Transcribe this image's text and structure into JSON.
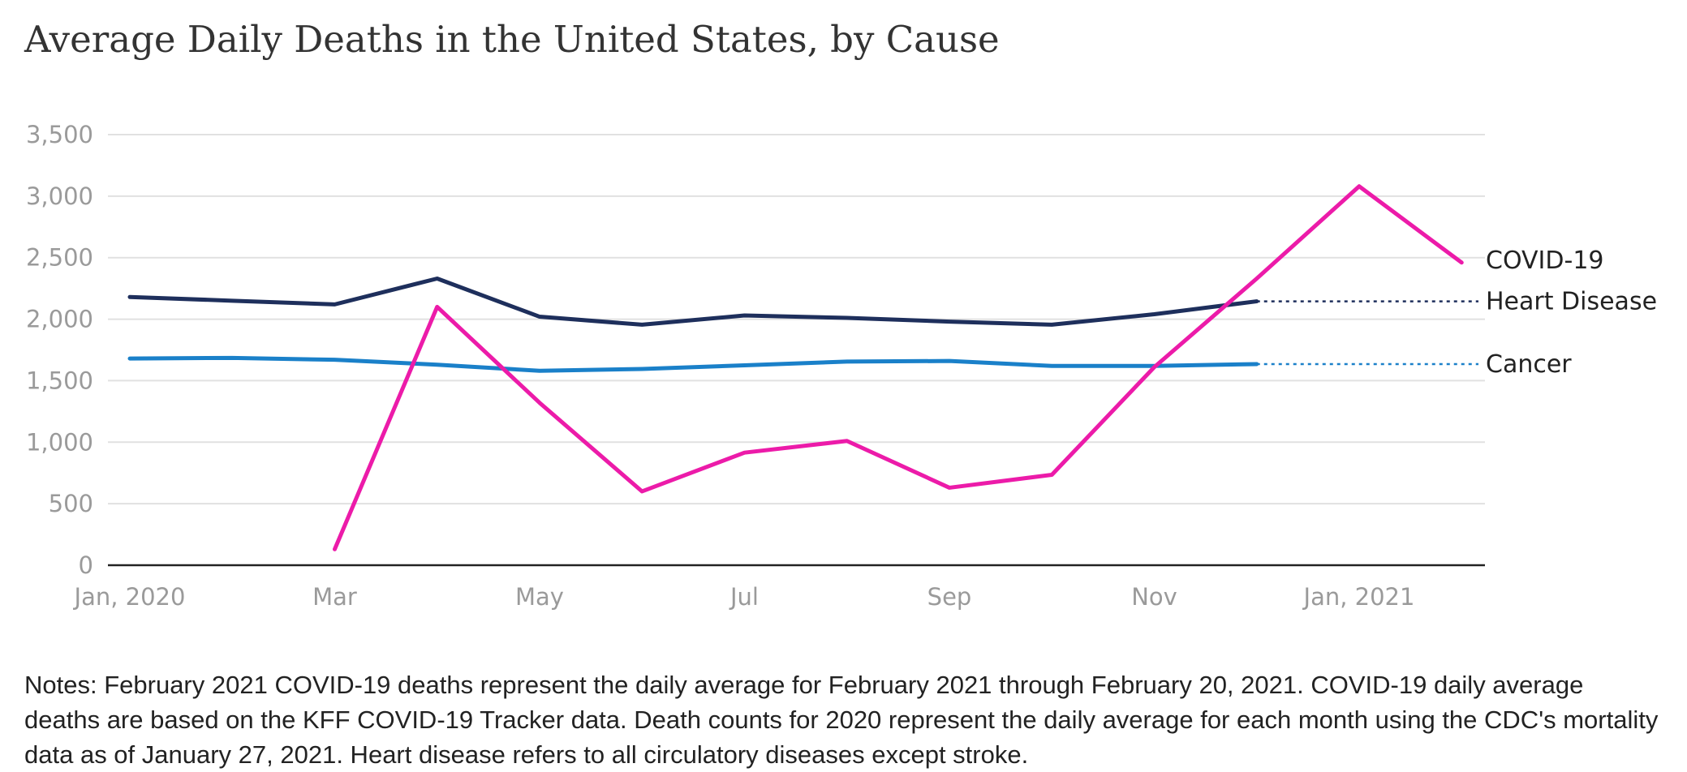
{
  "chart_data": {
    "type": "line",
    "title": "Average Daily Deaths in the United States, by Cause",
    "xlabel": "",
    "ylabel": "",
    "x": [
      "2020-01",
      "2020-02",
      "2020-03",
      "2020-04",
      "2020-05",
      "2020-06",
      "2020-07",
      "2020-08",
      "2020-09",
      "2020-10",
      "2020-11",
      "2020-12",
      "2021-01",
      "2021-02"
    ],
    "x_tick_labels": [
      {
        "x": "2020-01",
        "label": "Jan, 2020"
      },
      {
        "x": "2020-03",
        "label": "Mar"
      },
      {
        "x": "2020-05",
        "label": "May"
      },
      {
        "x": "2020-07",
        "label": "Jul"
      },
      {
        "x": "2020-09",
        "label": "Sep"
      },
      {
        "x": "2020-11",
        "label": "Nov"
      },
      {
        "x": "2021-01",
        "label": "Jan, 2021"
      }
    ],
    "y_ticks": [
      0,
      500,
      1000,
      1500,
      2000,
      2500,
      3000,
      3500
    ],
    "y_tick_labels": [
      "0",
      "500",
      "1,000",
      "1,500",
      "2,000",
      "2,500",
      "3,000",
      "3,500"
    ],
    "ylim": [
      0,
      3500
    ],
    "xlim": [
      "2020-01",
      "2021-03"
    ],
    "grid": true,
    "legend": "direct labels at right end of lines",
    "series": [
      {
        "name": "COVID-19",
        "color": "#ec1ba9",
        "dashed_extension": false,
        "values": [
          null,
          null,
          130,
          2100,
          1320,
          600,
          915,
          1010,
          630,
          735,
          1610,
          2330,
          3080,
          2460
        ]
      },
      {
        "name": "Heart Disease",
        "color": "#1e2f5c",
        "dashed_extension": true,
        "values": [
          2180,
          2150,
          2120,
          2330,
          2020,
          1955,
          2030,
          2010,
          1980,
          1955,
          2040,
          2145,
          null,
          null
        ]
      },
      {
        "name": "Cancer",
        "color": "#1a80c9",
        "dashed_extension": true,
        "values": [
          1680,
          1685,
          1670,
          1630,
          1580,
          1595,
          1625,
          1655,
          1660,
          1620,
          1620,
          1635,
          null,
          null
        ]
      }
    ]
  },
  "notes": "Notes: February 2021 COVID-19 deaths represent the daily average for February 2021 through February 20, 2021. COVID-19 daily average deaths are based on the KFF COVID-19 Tracker data. Death counts for 2020 represent the daily average for each month using the CDC's mortality data as of January 27, 2021. Heart disease refers to all circulatory diseases except stroke."
}
